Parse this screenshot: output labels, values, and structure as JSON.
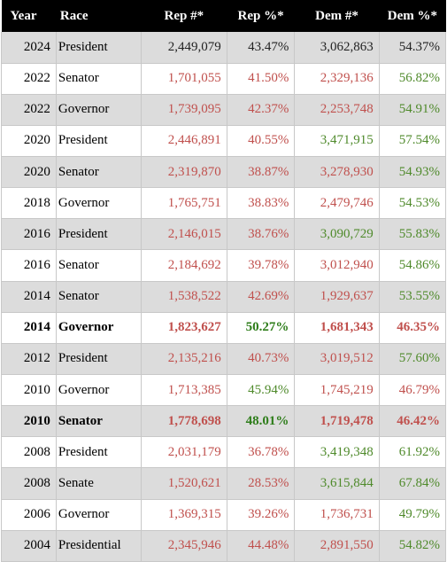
{
  "headers": {
    "year": "Year",
    "race": "Race",
    "rep_num": "Rep #*",
    "rep_pct": "Rep %*",
    "dem_num": "Dem #*",
    "dem_pct": "Dem %*"
  },
  "colors": {
    "rep": "#c0504d",
    "dem": "#4f8a2b",
    "neutral": "#222222"
  },
  "rows": [
    {
      "year": "2024",
      "race": "President",
      "rep_num": "2,449,079",
      "rep_pct": "43.47%",
      "dem_num": "3,062,863",
      "dem_pct": "54.37%",
      "c": [
        "black",
        "black",
        "black",
        "black"
      ],
      "bold": false
    },
    {
      "year": "2022",
      "race": "Senator",
      "rep_num": "1,701,055",
      "rep_pct": "41.50%",
      "dem_num": "2,329,136",
      "dem_pct": "56.82%",
      "c": [
        "red",
        "red",
        "red",
        "green"
      ],
      "bold": false
    },
    {
      "year": "2022",
      "race": "Governor",
      "rep_num": "1,739,095",
      "rep_pct": "42.37%",
      "dem_num": "2,253,748",
      "dem_pct": "54.91%",
      "c": [
        "red",
        "red",
        "red",
        "green"
      ],
      "bold": false
    },
    {
      "year": "2020",
      "race": "President",
      "rep_num": "2,446,891",
      "rep_pct": "40.55%",
      "dem_num": "3,471,915",
      "dem_pct": "57.54%",
      "c": [
        "red",
        "red",
        "green",
        "green"
      ],
      "bold": false
    },
    {
      "year": "2020",
      "race": "Senator",
      "rep_num": "2,319,870",
      "rep_pct": "38.87%",
      "dem_num": "3,278,930",
      "dem_pct": "54.93%",
      "c": [
        "red",
        "red",
        "red",
        "green"
      ],
      "bold": false
    },
    {
      "year": "2018",
      "race": "Governor",
      "rep_num": "1,765,751",
      "rep_pct": "38.83%",
      "dem_num": "2,479,746",
      "dem_pct": "54.53%",
      "c": [
        "red",
        "red",
        "red",
        "green"
      ],
      "bold": false
    },
    {
      "year": "2016",
      "race": "President",
      "rep_num": "2,146,015",
      "rep_pct": "38.76%",
      "dem_num": "3,090,729",
      "dem_pct": "55.83%",
      "c": [
        "red",
        "red",
        "green",
        "green"
      ],
      "bold": false
    },
    {
      "year": "2016",
      "race": "Senator",
      "rep_num": "2,184,692",
      "rep_pct": "39.78%",
      "dem_num": "3,012,940",
      "dem_pct": "54.86%",
      "c": [
        "red",
        "red",
        "red",
        "green"
      ],
      "bold": false
    },
    {
      "year": "2014",
      "race": "Senator",
      "rep_num": "1,538,522",
      "rep_pct": "42.69%",
      "dem_num": "1,929,637",
      "dem_pct": "53.55%",
      "c": [
        "red",
        "red",
        "red",
        "green"
      ],
      "bold": false
    },
    {
      "year": "2014",
      "race": "Governor",
      "rep_num": "1,823,627",
      "rep_pct": "50.27%",
      "dem_num": "1,681,343",
      "dem_pct": "46.35%",
      "c": [
        "red",
        "green",
        "red",
        "red"
      ],
      "bold": true
    },
    {
      "year": "2012",
      "race": "President",
      "rep_num": "2,135,216",
      "rep_pct": "40.73%",
      "dem_num": "3,019,512",
      "dem_pct": "57.60%",
      "c": [
        "red",
        "red",
        "red",
        "green"
      ],
      "bold": false
    },
    {
      "year": "2010",
      "race": "Governor",
      "rep_num": "1,713,385",
      "rep_pct": "45.94%",
      "dem_num": "1,745,219",
      "dem_pct": "46.79%",
      "c": [
        "red",
        "green",
        "red",
        "red"
      ],
      "bold": false
    },
    {
      "year": "2010",
      "race": "Senator",
      "rep_num": "1,778,698",
      "rep_pct": "48.01%",
      "dem_num": "1,719,478",
      "dem_pct": "46.42%",
      "c": [
        "red",
        "green",
        "red",
        "red"
      ],
      "bold": true
    },
    {
      "year": "2008",
      "race": "President",
      "rep_num": "2,031,179",
      "rep_pct": "36.78%",
      "dem_num": "3,419,348",
      "dem_pct": "61.92%",
      "c": [
        "red",
        "red",
        "green",
        "green"
      ],
      "bold": false
    },
    {
      "year": "2008",
      "race": "Senate",
      "rep_num": "1,520,621",
      "rep_pct": "28.53%",
      "dem_num": "3,615,844",
      "dem_pct": "67.84%",
      "c": [
        "red",
        "red",
        "green",
        "green"
      ],
      "bold": false
    },
    {
      "year": "2006",
      "race": "Governor",
      "rep_num": "1,369,315",
      "rep_pct": "39.26%",
      "dem_num": "1,736,731",
      "dem_pct": "49.79%",
      "c": [
        "red",
        "red",
        "red",
        "green"
      ],
      "bold": false
    },
    {
      "year": "2004",
      "race": "Presidential",
      "rep_num": "2,345,946",
      "rep_pct": "44.48%",
      "dem_num": "2,891,550",
      "dem_pct": "54.82%",
      "c": [
        "red",
        "red",
        "red",
        "green"
      ],
      "bold": false
    }
  ]
}
